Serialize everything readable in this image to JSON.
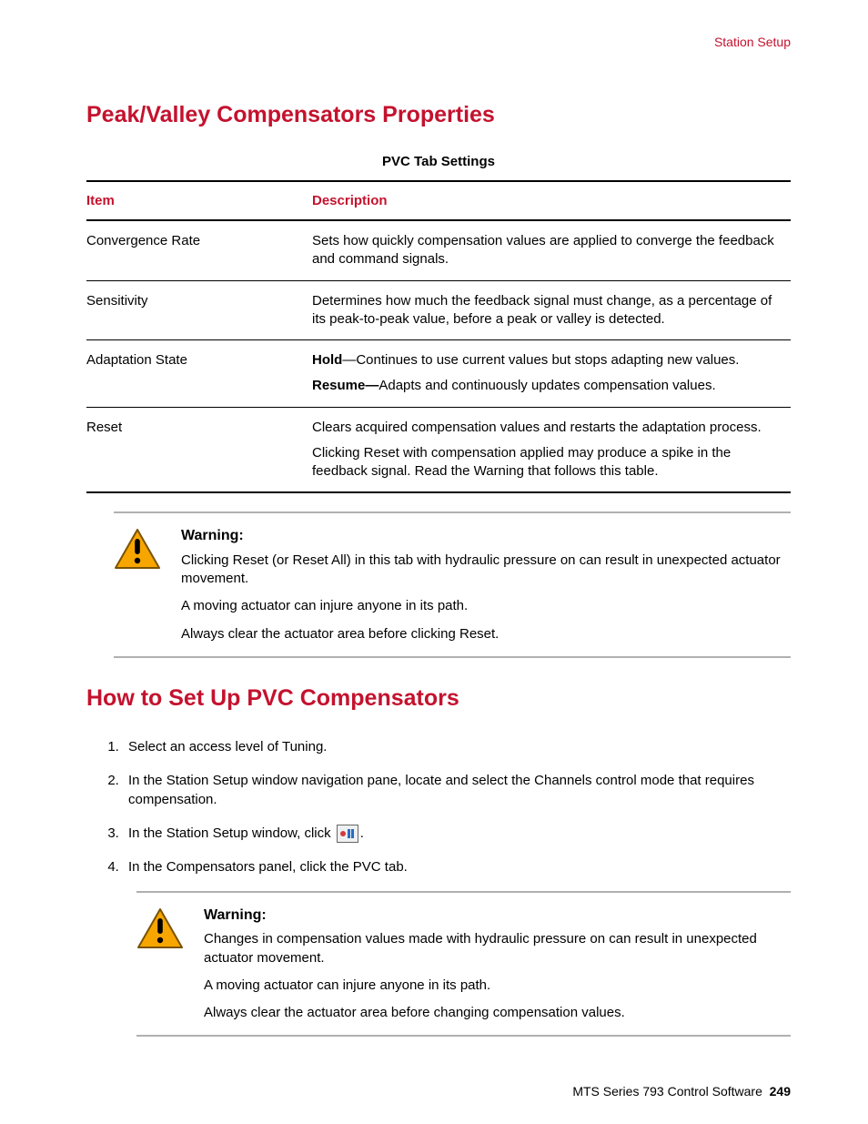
{
  "header": {
    "section": "Station Setup"
  },
  "title1": "Peak/Valley Compensators Properties",
  "table": {
    "caption": "PVC Tab Settings",
    "col_item": "Item",
    "col_desc": "Description",
    "rows": [
      {
        "item": "Convergence Rate",
        "desc": [
          {
            "html": "Sets how quickly compensation values are applied to converge the feedback and command signals."
          }
        ]
      },
      {
        "item": "Sensitivity",
        "desc": [
          {
            "html": "Determines how much the feedback signal must change, as a percentage of its peak-to-peak value, before a peak or valley is detected."
          }
        ]
      },
      {
        "item": "Adaptation State",
        "desc": [
          {
            "bold_prefix": "Hold",
            "rest": "—Continues to use current values but stops adapting new values."
          },
          {
            "bold_prefix": "Resume—",
            "rest": "Adapts and continuously updates compensation values."
          }
        ]
      },
      {
        "item": "Reset",
        "desc": [
          {
            "html": "Clears acquired compensation values and restarts the adaptation process."
          },
          {
            "html": "Clicking Reset with compensation applied may produce a spike in the feedback signal. Read the Warning that follows this table."
          }
        ]
      }
    ]
  },
  "warning1": {
    "title": "Warning:",
    "lines": [
      "Clicking Reset (or Reset All) in this tab with hydraulic pressure on can result in unexpected actuator movement.",
      "A moving actuator can injure anyone in its path.",
      "Always clear the actuator area before clicking Reset."
    ]
  },
  "title2": "How to Set Up PVC Compensators",
  "steps": {
    "s1": "Select an access level of Tuning.",
    "s2": "In the Station Setup window navigation pane, locate and select the Channels control mode that requires compensation.",
    "s3_pre": "In the Station Setup window, click ",
    "s3_post": ".",
    "s4": "In the Compensators panel, click the PVC tab."
  },
  "warning2": {
    "title": "Warning:",
    "lines": [
      "Changes in compensation values made with hydraulic pressure on can result in unexpected actuator movement.",
      "A moving actuator can injure anyone in its path.",
      "Always clear the actuator area before changing compensation values."
    ]
  },
  "footer": {
    "text": "MTS Series 793 Control Software",
    "page": "249"
  },
  "colors": {
    "accent": "#c4122e",
    "warning_fill": "#f7a600",
    "warning_border": "#8a5a00"
  }
}
